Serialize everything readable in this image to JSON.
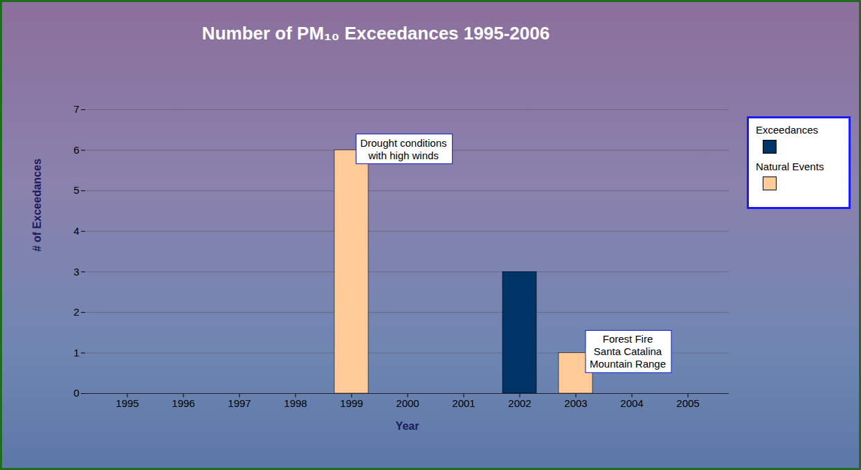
{
  "chart_data": {
    "type": "bar",
    "title": "Number of PM₁₀ Exceedances 1995-2006",
    "x_label": "Year",
    "y_label": "# of Exceedances",
    "categories": [
      "1995",
      "1996",
      "1997",
      "1998",
      "1999",
      "2000",
      "2001",
      "2002",
      "2003",
      "2004",
      "2005"
    ],
    "series": [
      {
        "name": "Exceedances",
        "color": "#003366",
        "values": [
          0,
          0,
          0,
          0,
          0,
          0,
          0,
          3,
          0,
          0,
          0
        ]
      },
      {
        "name": "Natural Events",
        "color": "#ffcc99",
        "values": [
          0,
          0,
          0,
          0,
          6,
          0,
          0,
          0,
          1,
          0,
          0
        ]
      }
    ],
    "stacked": true,
    "ylim": [
      0,
      7
    ],
    "yticks": [
      0,
      1,
      2,
      3,
      4,
      5,
      6,
      7
    ],
    "grid": true,
    "legend": "right",
    "annotations": [
      {
        "text": "Drought conditions\nwith high winds",
        "category": "1999",
        "series": "Natural Events"
      },
      {
        "text": "Forest Fire\nSanta Catalina\nMountain Range",
        "category": "2003",
        "series": "Natural Events"
      }
    ]
  }
}
